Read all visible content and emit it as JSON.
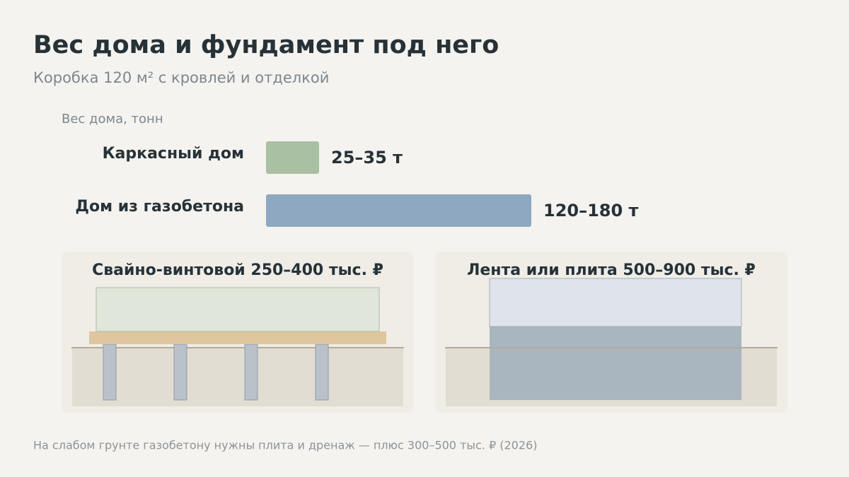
{
  "chart_data": {
    "type": "range-bar",
    "title": "Вес дома и фундамент под него",
    "subtitle": "Коробка 120 м² с кровлей и отделкой",
    "value_axis_label": "Вес дома, тонн",
    "categories": [
      "Каркасный дом",
      "Дом из газобетона"
    ],
    "low": [
      25,
      120
    ],
    "high": [
      35,
      180
    ],
    "value_labels": [
      "25–35 т",
      "120–180 т"
    ],
    "colors": [
      "#a9c0a2",
      "#8fa8c2"
    ]
  },
  "panels": [
    {
      "title": "Свайно-винтовой 250–400 тыс. ₽"
    },
    {
      "title": "Лента или плита 500–900 тыс. ₽"
    }
  ],
  "footnote": "На слабом грунте газобетону нужны плита и дренаж — плюс 300–500 тыс. ₽ (2026)"
}
